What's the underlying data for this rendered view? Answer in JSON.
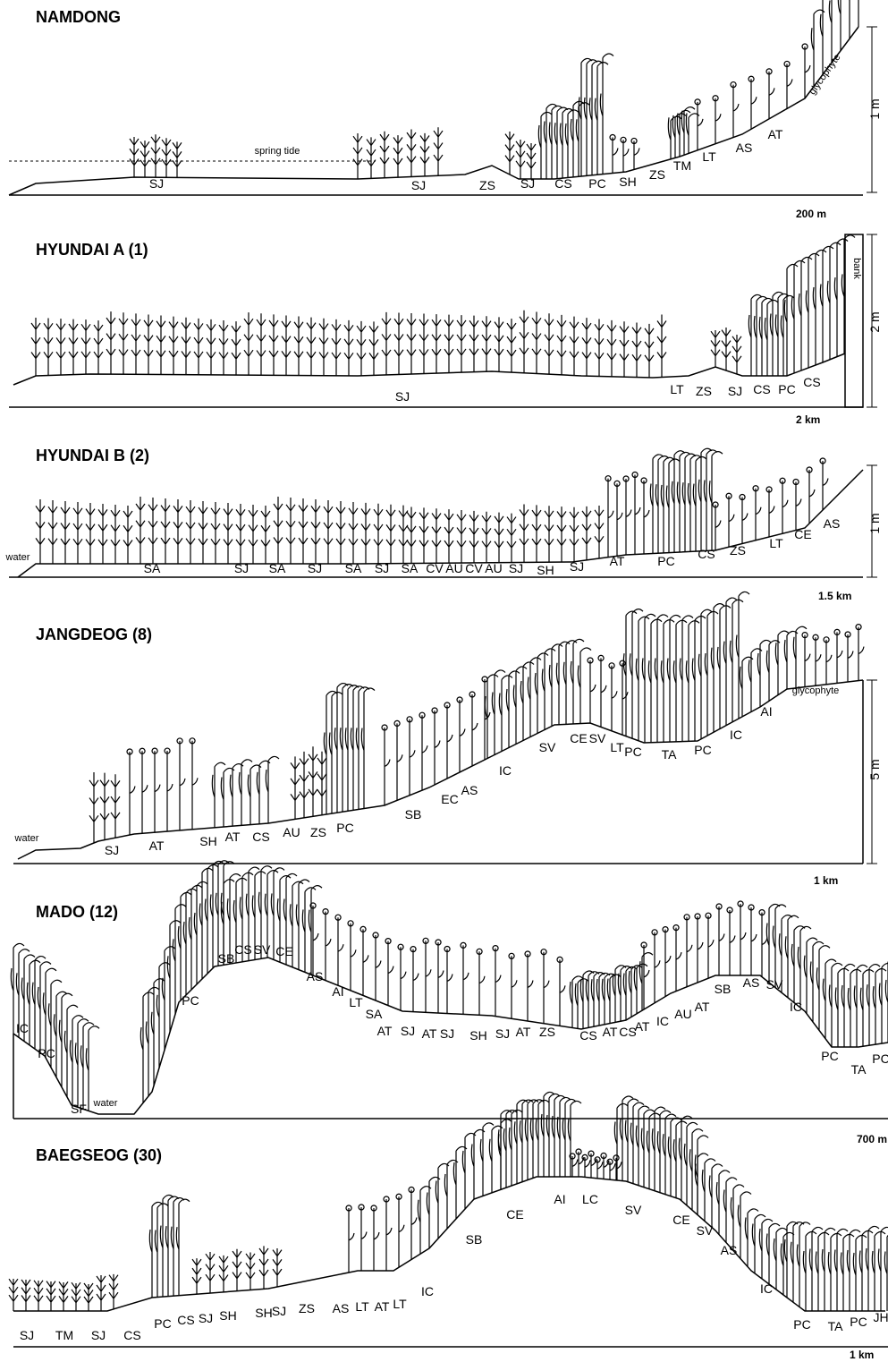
{
  "panels": [
    {
      "title": "NAMDONG",
      "labels": [
        "SJ",
        "SJ",
        "ZS",
        "SJ",
        "CS",
        "PC",
        "SH",
        "ZS",
        "TM",
        "LT",
        "AS",
        "AT"
      ],
      "notes": [
        "spring tide",
        "glycophyte"
      ],
      "height": "1 m",
      "scale": "200 m"
    },
    {
      "title": "HYUNDAI A (1)",
      "labels": [
        "SJ",
        "LT",
        "ZS",
        "SJ",
        "CS",
        "PC",
        "CS"
      ],
      "notes": [
        "bank"
      ],
      "height": "2 m",
      "scale": "2 km"
    },
    {
      "title": "HYUNDAI B (2)",
      "labels": [
        "SA",
        "SJ",
        "SA",
        "SJ",
        "SA",
        "SJ",
        "SA",
        "CV",
        "AU",
        "CV",
        "AU",
        "SJ",
        "SH",
        "SJ",
        "AT",
        "PC",
        "CS",
        "ZS",
        "LT",
        "CE",
        "AS"
      ],
      "notes": [
        "water"
      ],
      "height": "1 m",
      "scale": "1.5 km"
    },
    {
      "title": "JANGDEOG (8)",
      "labels": [
        "SJ",
        "AT",
        "SH",
        "AT",
        "CS",
        "AU",
        "ZS",
        "PC",
        "SB",
        "EC",
        "AS",
        "IC",
        "SV",
        "CE",
        "SV",
        "LT",
        "PC",
        "TA",
        "PC",
        "IC",
        "AI"
      ],
      "notes": [
        "water",
        "glycophyte"
      ],
      "height": "5 m",
      "scale": "1 km"
    },
    {
      "title": "MADO (12)",
      "labels": [
        "IC",
        "PC",
        "SF",
        "PC",
        "SB",
        "CS",
        "SV",
        "CE",
        "AS",
        "AI",
        "LT",
        "SA",
        "AT",
        "SJ",
        "AT",
        "SJ",
        "SH",
        "SJ",
        "AT",
        "ZS",
        "CS",
        "AT",
        "CS",
        "AT",
        "IC",
        "AU",
        "AT",
        "SB",
        "AS",
        "SV",
        "IC",
        "PC",
        "TA",
        "PC"
      ],
      "notes": [
        "water"
      ],
      "scale": "700 m"
    },
    {
      "title": "BAEGSEOG (30)",
      "labels": [
        "SJ",
        "TM",
        "SJ",
        "CS",
        "PC",
        "CS",
        "SJ",
        "SH",
        "SH",
        "SJ",
        "ZS",
        "AS",
        "LT",
        "AT",
        "LT",
        "IC",
        "SB",
        "CE",
        "AI",
        "LC",
        "SV",
        "CE",
        "SV",
        "AS",
        "IC",
        "PC",
        "TA",
        "PC",
        "JH"
      ],
      "scale": "1 km"
    }
  ]
}
